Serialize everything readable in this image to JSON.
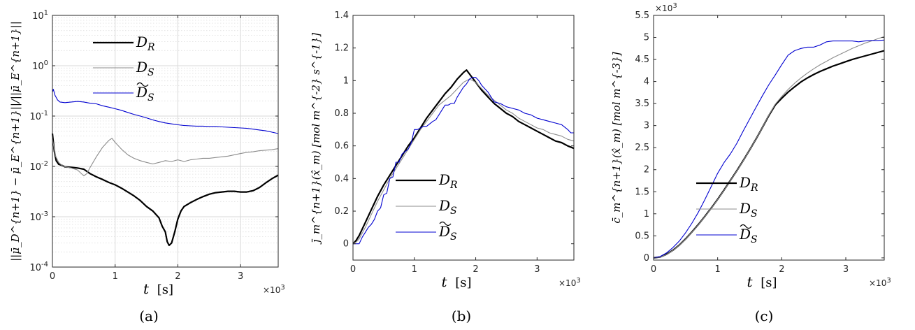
{
  "chart_data": [
    {
      "id": "a",
      "type": "line",
      "caption": "(a)",
      "xlabel": "t",
      "xunit": "[s]",
      "ylabel": "||μ̄_D^{n+1} − μ̄_E^{n+1}||/||μ̄_E^{n+1}||",
      "xlim": [
        0,
        3600
      ],
      "ylim": [
        0.0001,
        10
      ],
      "yscale": "log",
      "xticks": [
        0,
        1000,
        2000,
        3000
      ],
      "xtick_labels": [
        "0",
        "1",
        "2",
        "3"
      ],
      "x_multiplier": "×10",
      "x_multiplier_exp": "3",
      "yticks": [
        0.0001,
        0.001,
        0.01,
        0.1,
        1,
        10
      ],
      "ytick_labels": [
        {
          "base": "10",
          "exp": "-4"
        },
        {
          "base": "10",
          "exp": "-3"
        },
        {
          "base": "10",
          "exp": "-2"
        },
        {
          "base": "10",
          "exp": "-1"
        },
        {
          "base": "10",
          "exp": "0"
        },
        {
          "base": "10",
          "exp": "1"
        }
      ],
      "grid": true,
      "legend_position": "top-center",
      "series": [
        {
          "name": "D_R",
          "legend_main": "D",
          "legend_sub": "R",
          "tilde": false,
          "color": "#000000",
          "width": 2.2,
          "x": [
            0,
            30,
            60,
            100,
            150,
            200,
            300,
            400,
            500,
            600,
            700,
            800,
            900,
            1000,
            1100,
            1200,
            1300,
            1400,
            1500,
            1600,
            1700,
            1750,
            1800,
            1830,
            1860,
            1900,
            1950,
            2000,
            2050,
            2100,
            2200,
            2300,
            2400,
            2500,
            2600,
            2700,
            2800,
            2900,
            3000,
            3100,
            3200,
            3300,
            3400,
            3500,
            3600
          ],
          "y": [
            0.045,
            0.02,
            0.013,
            0.011,
            0.0105,
            0.0098,
            0.0096,
            0.0093,
            0.0088,
            0.0072,
            0.0062,
            0.0055,
            0.0048,
            0.0043,
            0.0037,
            0.0031,
            0.0026,
            0.0021,
            0.0016,
            0.0013,
            0.00095,
            0.00065,
            0.0005,
            0.00032,
            0.00027,
            0.0003,
            0.0005,
            0.0009,
            0.0013,
            0.0016,
            0.0019,
            0.0022,
            0.0025,
            0.0028,
            0.003,
            0.0031,
            0.0032,
            0.0032,
            0.0031,
            0.0031,
            0.0033,
            0.0038,
            0.0047,
            0.0057,
            0.0067
          ]
        },
        {
          "name": "D_S",
          "legend_main": "D",
          "legend_sub": "S",
          "tilde": false,
          "color": "#8c8c8c",
          "width": 1.1,
          "x": [
            0,
            50,
            100,
            150,
            200,
            300,
            400,
            500,
            550,
            600,
            700,
            800,
            900,
            950,
            1000,
            1100,
            1200,
            1300,
            1400,
            1500,
            1600,
            1700,
            1800,
            1900,
            2000,
            2100,
            2200,
            2300,
            2400,
            2500,
            2600,
            2700,
            2800,
            2900,
            3000,
            3100,
            3200,
            3300,
            3400,
            3500,
            3600
          ],
          "y": [
            0.035,
            0.016,
            0.012,
            0.0105,
            0.0098,
            0.0093,
            0.0085,
            0.0065,
            0.0072,
            0.0095,
            0.0155,
            0.024,
            0.033,
            0.036,
            0.03,
            0.022,
            0.017,
            0.0145,
            0.013,
            0.012,
            0.0112,
            0.012,
            0.013,
            0.0125,
            0.0135,
            0.0125,
            0.0135,
            0.014,
            0.0145,
            0.0145,
            0.015,
            0.0155,
            0.016,
            0.017,
            0.018,
            0.019,
            0.0195,
            0.0205,
            0.021,
            0.0215,
            0.0225
          ]
        },
        {
          "name": "D̃_S",
          "legend_main": "D",
          "legend_sub": "S",
          "tilde": true,
          "color": "#0000d0",
          "width": 1.1,
          "x": [
            0,
            15,
            40,
            80,
            120,
            200,
            300,
            400,
            500,
            600,
            700,
            800,
            900,
            1000,
            1100,
            1200,
            1300,
            1400,
            1500,
            1600,
            1700,
            1800,
            1900,
            2000,
            2100,
            2200,
            2300,
            2400,
            2500,
            2600,
            2700,
            2800,
            2900,
            3000,
            3100,
            3200,
            3300,
            3400,
            3500,
            3600
          ],
          "y": [
            0.3,
            0.34,
            0.26,
            0.21,
            0.19,
            0.185,
            0.19,
            0.195,
            0.19,
            0.18,
            0.175,
            0.16,
            0.15,
            0.14,
            0.13,
            0.118,
            0.108,
            0.1,
            0.092,
            0.084,
            0.078,
            0.073,
            0.07,
            0.067,
            0.065,
            0.064,
            0.063,
            0.063,
            0.062,
            0.062,
            0.061,
            0.06,
            0.059,
            0.058,
            0.057,
            0.055,
            0.053,
            0.051,
            0.048,
            0.045
          ]
        }
      ]
    },
    {
      "id": "b",
      "type": "line",
      "caption": "(b)",
      "xlabel": "t",
      "xunit": "[s]",
      "ylabel": "j̄_m^{n+1}(x̂_m) [mol m^{-2} s^{-1}]",
      "xlim": [
        0,
        3600
      ],
      "ylim": [
        -0.1,
        1.4
      ],
      "yscale": "linear",
      "xticks": [
        0,
        1000,
        2000,
        3000
      ],
      "xtick_labels": [
        "0",
        "1",
        "2",
        "3"
      ],
      "x_multiplier": "×10",
      "x_multiplier_exp": "3",
      "yticks": [
        0,
        0.2,
        0.4,
        0.6,
        0.8,
        1,
        1.2,
        1.4
      ],
      "ytick_labels": [
        "0",
        "0.2",
        "0.4",
        "0.6",
        "0.8",
        "1",
        "1.2",
        "1.4"
      ],
      "grid": false,
      "legend_position": "bottom-center",
      "series": [
        {
          "name": "D_R",
          "legend_main": "D",
          "legend_sub": "R",
          "tilde": false,
          "color": "#000000",
          "width": 2.2,
          "x": [
            0,
            50,
            100,
            200,
            300,
            400,
            500,
            600,
            700,
            800,
            900,
            1000,
            1100,
            1200,
            1300,
            1400,
            1500,
            1600,
            1700,
            1800,
            1850,
            1900,
            2000,
            2100,
            2200,
            2300,
            2400,
            2500,
            2600,
            2700,
            2800,
            2900,
            3000,
            3100,
            3200,
            3300,
            3400,
            3500,
            3600
          ],
          "y": [
            0,
            0.02,
            0.05,
            0.13,
            0.21,
            0.29,
            0.36,
            0.42,
            0.48,
            0.54,
            0.6,
            0.65,
            0.71,
            0.77,
            0.82,
            0.87,
            0.92,
            0.96,
            1.01,
            1.05,
            1.065,
            1.04,
            0.99,
            0.94,
            0.9,
            0.86,
            0.83,
            0.8,
            0.78,
            0.75,
            0.73,
            0.71,
            0.69,
            0.67,
            0.65,
            0.63,
            0.62,
            0.6,
            0.585
          ]
        },
        {
          "name": "D_S",
          "legend_main": "D",
          "legend_sub": "S",
          "tilde": false,
          "color": "#8c8c8c",
          "width": 1.1,
          "x": [
            0,
            50,
            100,
            200,
            300,
            400,
            500,
            600,
            700,
            800,
            900,
            1000,
            1100,
            1200,
            1300,
            1400,
            1500,
            1600,
            1700,
            1800,
            1900,
            2000,
            2100,
            2200,
            2300,
            2400,
            2500,
            2600,
            2700,
            2800,
            2900,
            3000,
            3100,
            3200,
            3300,
            3400,
            3500,
            3600
          ],
          "y": [
            0,
            0.01,
            0.03,
            0.1,
            0.18,
            0.26,
            0.33,
            0.4,
            0.46,
            0.52,
            0.58,
            0.64,
            0.7,
            0.75,
            0.8,
            0.85,
            0.88,
            0.91,
            0.95,
            0.99,
            1.01,
            0.99,
            0.95,
            0.91,
            0.88,
            0.85,
            0.82,
            0.8,
            0.77,
            0.75,
            0.73,
            0.71,
            0.7,
            0.68,
            0.67,
            0.66,
            0.64,
            0.63
          ]
        },
        {
          "name": "D̃_S",
          "legend_main": "D",
          "legend_sub": "S",
          "tilde": true,
          "color": "#0000d0",
          "width": 1.1,
          "x": [
            0,
            100,
            150,
            200,
            250,
            300,
            350,
            400,
            450,
            500,
            550,
            600,
            650,
            700,
            750,
            800,
            900,
            950,
            1000,
            1050,
            1100,
            1150,
            1200,
            1300,
            1350,
            1400,
            1450,
            1500,
            1550,
            1600,
            1650,
            1700,
            1750,
            1800,
            1850,
            1900,
            1950,
            2000,
            2050,
            2100,
            2200,
            2250,
            2300,
            2400,
            2500,
            2600,
            2700,
            2800,
            2900,
            3000,
            3100,
            3200,
            3300,
            3400,
            3500,
            3550,
            3600
          ],
          "y": [
            0,
            0,
            0.04,
            0.07,
            0.1,
            0.12,
            0.15,
            0.2,
            0.22,
            0.3,
            0.31,
            0.4,
            0.41,
            0.5,
            0.5,
            0.55,
            0.58,
            0.62,
            0.7,
            0.7,
            0.71,
            0.72,
            0.72,
            0.75,
            0.76,
            0.79,
            0.82,
            0.85,
            0.85,
            0.86,
            0.86,
            0.9,
            0.93,
            0.96,
            0.98,
            1.01,
            1.02,
            1.02,
            1.0,
            0.97,
            0.93,
            0.9,
            0.87,
            0.86,
            0.84,
            0.83,
            0.82,
            0.8,
            0.79,
            0.77,
            0.76,
            0.75,
            0.74,
            0.73,
            0.7,
            0.68,
            0.68
          ]
        }
      ]
    },
    {
      "id": "c",
      "type": "line",
      "caption": "(c)",
      "xlabel": "t",
      "xunit": "[s]",
      "ylabel": "c̄_m^{n+1}(x̂_m) [mol m^{-3}]",
      "xlim": [
        0,
        3600
      ],
      "ylim": [
        -50,
        5500
      ],
      "yscale": "linear",
      "xticks": [
        0,
        1000,
        2000,
        3000
      ],
      "xtick_labels": [
        "0",
        "1",
        "2",
        "3"
      ],
      "x_multiplier": "×10",
      "x_multiplier_exp": "3",
      "y_multiplier": "×10",
      "y_multiplier_exp": "3",
      "yticks": [
        0,
        500,
        1000,
        1500,
        2000,
        2500,
        3000,
        3500,
        4000,
        4500,
        5000,
        5500
      ],
      "ytick_labels": [
        "0",
        "0.5",
        "1",
        "1.5",
        "2",
        "2.5",
        "3",
        "3.5",
        "4",
        "4.5",
        "5",
        "5.5"
      ],
      "grid": false,
      "legend_position": "bottom-center",
      "series": [
        {
          "name": "D_R",
          "legend_main": "D",
          "legend_sub": "R",
          "tilde": false,
          "color": "#000000",
          "width": 2.2,
          "x": [
            0,
            100,
            200,
            300,
            400,
            500,
            600,
            700,
            800,
            900,
            1000,
            1100,
            1200,
            1300,
            1400,
            1500,
            1600,
            1700,
            1800,
            1900,
            2000,
            2100,
            2200,
            2300,
            2400,
            2500,
            2600,
            2700,
            2800,
            2900,
            3000,
            3100,
            3200,
            3300,
            3400,
            3500,
            3600
          ],
          "y": [
            0,
            20,
            80,
            170,
            290,
            430,
            590,
            760,
            940,
            1130,
            1330,
            1540,
            1760,
            1980,
            2210,
            2450,
            2700,
            2960,
            3230,
            3470,
            3620,
            3760,
            3880,
            3990,
            4080,
            4160,
            4230,
            4290,
            4350,
            4400,
            4450,
            4500,
            4540,
            4580,
            4620,
            4660,
            4700
          ]
        },
        {
          "name": "D_S",
          "legend_main": "D",
          "legend_sub": "S",
          "tilde": false,
          "color": "#8c8c8c",
          "width": 1.1,
          "x": [
            0,
            100,
            200,
            300,
            400,
            500,
            600,
            700,
            800,
            900,
            1000,
            1100,
            1200,
            1300,
            1400,
            1500,
            1600,
            1700,
            1800,
            1900,
            2000,
            2100,
            2200,
            2300,
            2400,
            2500,
            2600,
            2700,
            2800,
            2900,
            3000,
            3100,
            3200,
            3300,
            3400,
            3500,
            3600
          ],
          "y": [
            0,
            18,
            75,
            165,
            285,
            425,
            585,
            755,
            935,
            1125,
            1325,
            1535,
            1755,
            1975,
            2205,
            2450,
            2700,
            2960,
            3240,
            3490,
            3660,
            3820,
            3960,
            4080,
            4190,
            4290,
            4380,
            4460,
            4540,
            4610,
            4680,
            4750,
            4810,
            4870,
            4920,
            4970,
            5020
          ]
        },
        {
          "name": "D̃_S",
          "legend_main": "D",
          "legend_sub": "S",
          "tilde": true,
          "color": "#0000d0",
          "width": 1.1,
          "x": [
            0,
            100,
            200,
            300,
            400,
            500,
            600,
            700,
            800,
            900,
            1000,
            1100,
            1200,
            1300,
            1400,
            1500,
            1600,
            1700,
            1800,
            1900,
            2000,
            2100,
            2200,
            2300,
            2400,
            2500,
            2600,
            2700,
            2800,
            2900,
            3000,
            3100,
            3200,
            3300,
            3400,
            3500,
            3600
          ],
          "y": [
            0,
            30,
            110,
            230,
            380,
            570,
            790,
            1040,
            1320,
            1620,
            1920,
            2160,
            2360,
            2600,
            2880,
            3150,
            3420,
            3680,
            3930,
            4150,
            4380,
            4600,
            4700,
            4750,
            4780,
            4780,
            4830,
            4900,
            4920,
            4920,
            4920,
            4920,
            4900,
            4920,
            4930,
            4930,
            4940
          ]
        }
      ]
    }
  ]
}
